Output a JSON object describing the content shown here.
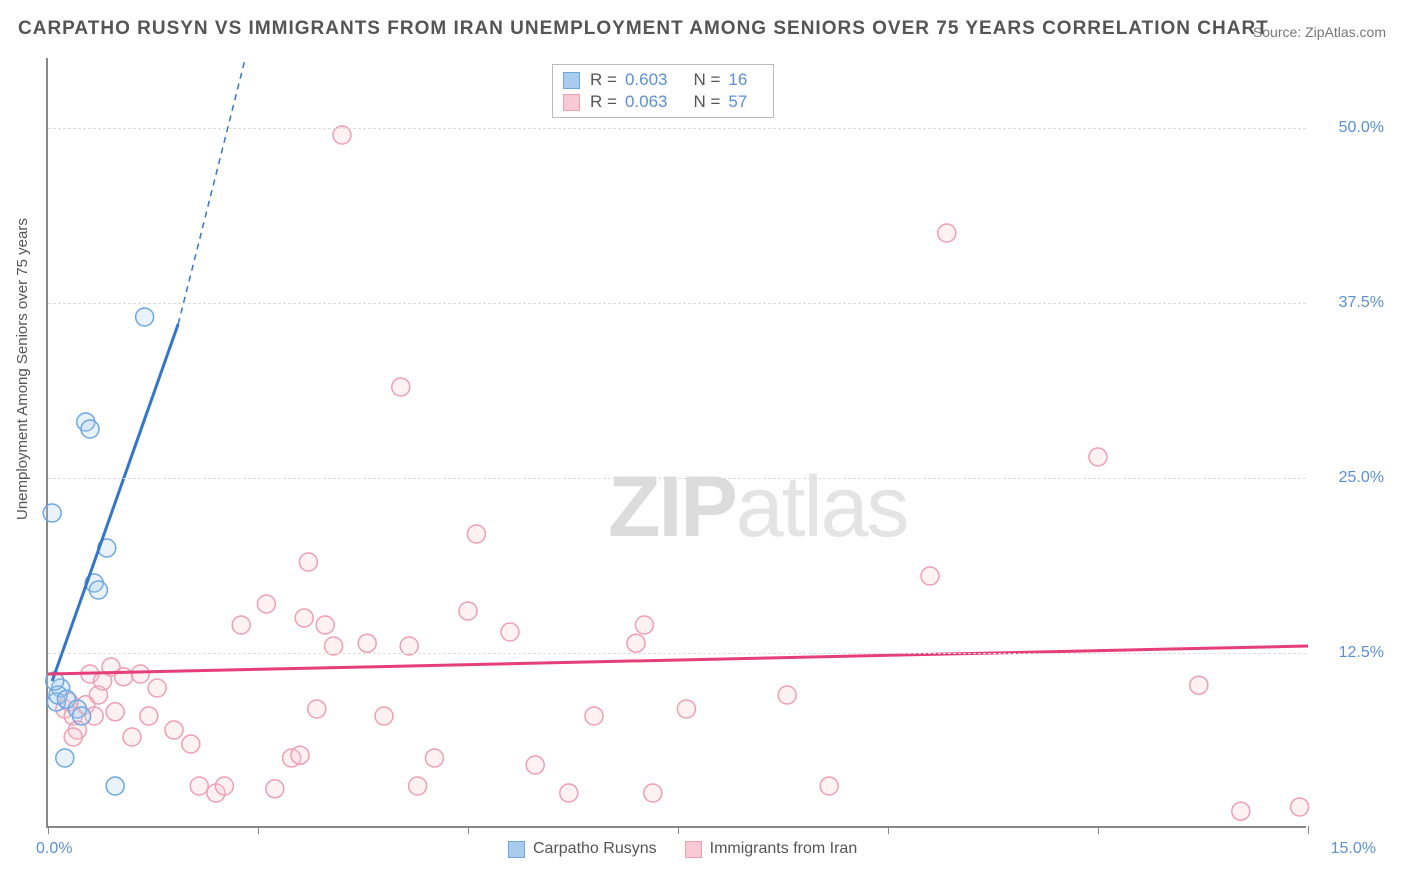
{
  "title": "CARPATHO RUSYN VS IMMIGRANTS FROM IRAN UNEMPLOYMENT AMONG SENIORS OVER 75 YEARS CORRELATION CHART",
  "source": "Source: ZipAtlas.com",
  "watermark_zip": "ZIP",
  "watermark_atlas": "atlas",
  "ylabel": "Unemployment Among Seniors over 75 years",
  "chart": {
    "type": "scatter",
    "xlim": [
      0,
      15
    ],
    "ylim": [
      0,
      55
    ],
    "y_gridlines": [
      12.5,
      25.0,
      37.5,
      50.0
    ],
    "y_tick_labels": [
      "12.5%",
      "25.0%",
      "37.5%",
      "50.0%"
    ],
    "x_ticks": [
      0,
      2.5,
      5.0,
      7.5,
      10.0,
      12.5,
      15.0
    ],
    "x_label_0": "0.0%",
    "x_label_15": "15.0%",
    "background_color": "#ffffff",
    "grid_color": "#dddddd",
    "axis_color": "#888888",
    "marker_radius": 9,
    "marker_stroke_width": 1.5,
    "marker_fill_opacity": 0.25,
    "trend_line_width": 3,
    "series": [
      {
        "name": "Carpatho Rusyns",
        "color_stroke": "#6ca7e2",
        "color_fill": "#a9cbed",
        "trend_color": "#3476c8",
        "R": "0.603",
        "N": "16",
        "points": [
          [
            0.05,
            22.5
          ],
          [
            0.15,
            10.0
          ],
          [
            0.1,
            9.0
          ],
          [
            0.12,
            9.5
          ],
          [
            0.2,
            5.0
          ],
          [
            0.22,
            9.2
          ],
          [
            0.35,
            8.5
          ],
          [
            0.4,
            8.0
          ],
          [
            0.55,
            17.5
          ],
          [
            0.6,
            17.0
          ],
          [
            0.45,
            29.0
          ],
          [
            0.5,
            28.5
          ],
          [
            0.7,
            20.0
          ],
          [
            0.8,
            3.0
          ],
          [
            1.15,
            36.5
          ],
          [
            0.08,
            10.5
          ]
        ],
        "trend": {
          "x1": 0.05,
          "y1": 10.5,
          "x2": 1.55,
          "y2": 36.0
        },
        "trend_dash_ext": {
          "x1": 1.55,
          "y1": 36.0,
          "x2": 2.35,
          "y2": 55.0
        }
      },
      {
        "name": "Immigrants from Iran",
        "color_stroke": "#f09eb3",
        "color_fill": "#f9c9d5",
        "trend_color": "#e63e7a",
        "R": "0.063",
        "N": "57",
        "points": [
          [
            0.2,
            8.5
          ],
          [
            0.25,
            9.0
          ],
          [
            0.3,
            8.0
          ],
          [
            0.35,
            7.0
          ],
          [
            0.45,
            8.8
          ],
          [
            0.5,
            11.0
          ],
          [
            0.6,
            9.5
          ],
          [
            0.55,
            8.0
          ],
          [
            0.65,
            10.5
          ],
          [
            0.75,
            11.5
          ],
          [
            0.8,
            8.3
          ],
          [
            0.9,
            10.8
          ],
          [
            1.0,
            6.5
          ],
          [
            1.1,
            11.0
          ],
          [
            1.2,
            8.0
          ],
          [
            1.3,
            10.0
          ],
          [
            1.5,
            7.0
          ],
          [
            1.7,
            6.0
          ],
          [
            1.8,
            3.0
          ],
          [
            2.0,
            2.5
          ],
          [
            2.1,
            3.0
          ],
          [
            2.3,
            14.5
          ],
          [
            2.6,
            16.0
          ],
          [
            2.7,
            2.8
          ],
          [
            2.9,
            5.0
          ],
          [
            3.0,
            5.2
          ],
          [
            3.05,
            15.0
          ],
          [
            3.1,
            19.0
          ],
          [
            3.2,
            8.5
          ],
          [
            3.3,
            14.5
          ],
          [
            3.4,
            13.0
          ],
          [
            3.5,
            49.5
          ],
          [
            3.8,
            13.2
          ],
          [
            4.0,
            8.0
          ],
          [
            4.2,
            31.5
          ],
          [
            4.4,
            3.0
          ],
          [
            4.3,
            13.0
          ],
          [
            4.6,
            5.0
          ],
          [
            5.0,
            15.5
          ],
          [
            5.1,
            21.0
          ],
          [
            5.5,
            14.0
          ],
          [
            5.8,
            4.5
          ],
          [
            6.2,
            2.5
          ],
          [
            6.5,
            8.0
          ],
          [
            7.0,
            13.2
          ],
          [
            7.1,
            14.5
          ],
          [
            7.2,
            2.5
          ],
          [
            7.6,
            8.5
          ],
          [
            8.8,
            9.5
          ],
          [
            9.3,
            3.0
          ],
          [
            10.5,
            18.0
          ],
          [
            10.7,
            42.5
          ],
          [
            12.5,
            26.5
          ],
          [
            13.7,
            10.2
          ],
          [
            14.2,
            1.2
          ],
          [
            14.9,
            1.5
          ],
          [
            0.3,
            6.5
          ]
        ],
        "trend": {
          "x1": 0.0,
          "y1": 11.0,
          "x2": 15.0,
          "y2": 13.0
        }
      }
    ]
  },
  "legend_bottom": {
    "items": [
      {
        "label": "Carpatho Rusyns",
        "swatch_fill": "#a9cbed",
        "swatch_stroke": "#6ca7e2"
      },
      {
        "label": "Immigrants from Iran",
        "swatch_fill": "#f9c9d5",
        "swatch_stroke": "#f09eb3"
      }
    ]
  }
}
